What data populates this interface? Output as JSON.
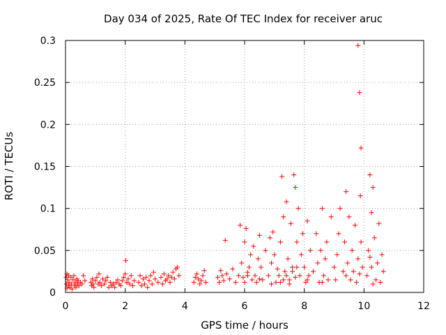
{
  "chart_data": {
    "type": "scatter",
    "title": "Day 034 of 2025, Rate Of TEC Index for receiver aruc",
    "xlabel": "GPS time / hours",
    "ylabel": "ROTI / TECUs",
    "xlim": [
      0,
      12
    ],
    "ylim": [
      0,
      0.3
    ],
    "xticks": [
      "0",
      "2",
      "4",
      "6",
      "8",
      "10",
      "12"
    ],
    "yticks": [
      "0",
      "0.05",
      "0.1",
      "0.15",
      "0.2",
      "0.25",
      "0.3"
    ],
    "grid": true,
    "marker": "+",
    "color": "#ff0000",
    "series": [
      {
        "x": [
          0.02,
          0.03,
          0.05,
          0.05,
          0.07,
          0.1,
          0.1,
          0.12,
          0.15,
          0.18,
          0.2,
          0.22,
          0.25,
          0.28,
          0.3,
          0.32,
          0.35,
          0.38,
          0.4,
          0.42,
          0.45,
          0.5,
          0.55,
          0.6,
          0.65,
          0.85,
          0.88,
          0.9,
          0.92,
          0.95,
          1.0,
          1.05,
          1.1,
          1.12,
          1.15,
          1.2,
          1.25,
          1.3,
          1.35,
          1.4,
          1.45,
          1.5,
          1.55,
          1.6,
          1.65,
          1.7,
          1.75,
          1.8,
          1.85,
          1.9,
          1.95,
          2.0,
          2.02,
          2.05,
          2.1,
          2.15,
          2.2,
          2.25,
          2.3,
          2.45,
          2.5,
          2.55,
          2.6,
          2.65,
          2.7,
          2.75,
          2.8,
          2.85,
          2.9,
          2.95,
          3.0,
          3.1,
          3.2,
          3.25,
          3.3,
          3.35,
          3.4,
          3.45,
          3.5,
          3.55,
          3.6,
          3.65,
          3.7,
          3.75,
          3.8,
          4.3,
          4.35,
          4.4,
          4.45,
          4.5,
          4.55,
          4.6,
          4.65,
          4.7,
          5.1,
          5.15,
          5.2,
          5.25,
          5.3,
          5.35,
          5.4,
          5.5,
          5.6,
          5.7,
          5.8,
          5.85,
          5.9,
          5.95,
          6.0,
          6.05,
          6.1,
          6.15,
          6.2,
          6.25,
          6.3,
          6.35,
          6.4,
          6.45,
          6.5,
          6.55,
          6.6,
          6.7,
          6.8,
          6.85,
          6.9,
          6.95,
          7.0,
          7.05,
          7.1,
          7.15,
          7.2,
          7.25,
          7.3,
          7.35,
          7.4,
          7.45,
          7.5,
          7.55,
          7.6,
          7.65,
          7.7,
          7.75,
          7.8,
          7.85,
          7.9,
          7.95,
          8.0,
          8.05,
          8.1,
          8.15,
          8.2,
          8.3,
          8.4,
          8.45,
          8.5,
          8.55,
          8.6,
          8.65,
          8.7,
          8.75,
          8.8,
          8.9,
          9.0,
          9.05,
          9.1,
          9.15,
          9.2,
          9.3,
          9.35,
          9.4,
          9.45,
          9.5,
          9.55,
          9.6,
          9.65,
          9.7,
          9.75,
          9.8,
          9.85,
          9.9,
          9.95,
          10.1,
          10.15,
          10.2,
          10.25,
          10.3,
          10.35,
          10.4,
          10.45,
          10.5,
          10.55,
          10.6,
          10.65,
          7.2,
          7.3,
          7.4,
          7.5,
          7.6,
          7.7,
          7.75,
          6.0,
          6.1,
          6.5,
          6.9,
          8.1,
          8.6,
          9.4,
          9.8,
          9.85,
          9.9,
          9.88,
          10.2,
          10.25,
          10.3
        ],
        "y": [
          0.018,
          0.01,
          0.022,
          0.005,
          0.015,
          0.008,
          0.02,
          0.012,
          0.006,
          0.018,
          0.01,
          0.004,
          0.015,
          0.02,
          0.008,
          0.012,
          0.006,
          0.016,
          0.01,
          0.014,
          0.008,
          0.012,
          0.01,
          0.02,
          0.014,
          0.012,
          0.008,
          0.016,
          0.01,
          0.006,
          0.014,
          0.018,
          0.01,
          0.022,
          0.012,
          0.008,
          0.016,
          0.01,
          0.014,
          0.018,
          0.006,
          0.012,
          0.008,
          0.01,
          0.006,
          0.012,
          0.015,
          0.01,
          0.008,
          0.014,
          0.018,
          0.022,
          0.038,
          0.012,
          0.016,
          0.01,
          0.02,
          0.008,
          0.014,
          0.012,
          0.02,
          0.008,
          0.016,
          0.01,
          0.018,
          0.006,
          0.014,
          0.02,
          0.01,
          0.024,
          0.016,
          0.012,
          0.018,
          0.01,
          0.022,
          0.014,
          0.016,
          0.02,
          0.012,
          0.018,
          0.024,
          0.016,
          0.028,
          0.03,
          0.02,
          0.012,
          0.018,
          0.022,
          0.016,
          0.01,
          0.014,
          0.02,
          0.026,
          0.012,
          0.018,
          0.012,
          0.026,
          0.02,
          0.014,
          0.062,
          0.022,
          0.016,
          0.028,
          0.012,
          0.02,
          0.08,
          0.035,
          0.018,
          0.06,
          0.076,
          0.024,
          0.03,
          0.045,
          0.015,
          0.055,
          0.02,
          0.012,
          0.04,
          0.068,
          0.03,
          0.015,
          0.05,
          0.02,
          0.065,
          0.035,
          0.072,
          0.045,
          0.012,
          0.028,
          0.02,
          0.06,
          0.138,
          0.09,
          0.025,
          0.108,
          0.04,
          0.015,
          0.082,
          0.03,
          0.14,
          0.125,
          0.06,
          0.1,
          0.02,
          0.045,
          0.07,
          0.03,
          0.012,
          0.085,
          0.02,
          0.05,
          0.025,
          0.07,
          0.035,
          0.012,
          0.05,
          0.1,
          0.02,
          0.04,
          0.06,
          0.015,
          0.09,
          0.03,
          0.015,
          0.045,
          0.07,
          0.1,
          0.025,
          0.06,
          0.12,
          0.035,
          0.09,
          0.015,
          0.05,
          0.025,
          0.08,
          0.012,
          0.04,
          0.022,
          0.06,
          0.03,
          0.02,
          0.05,
          0.14,
          0.03,
          0.125,
          0.065,
          0.015,
          0.035,
          0.082,
          0.012,
          0.045,
          0.025,
          0.012,
          0.015,
          0.02,
          0.01,
          0.025,
          0.018,
          0.03,
          0.012,
          0.02,
          0.016,
          0.01,
          0.015,
          0.012,
          0.02,
          0.294,
          0.238,
          0.172,
          0.115,
          0.042,
          0.095,
          0.01
        ]
      }
    ]
  }
}
